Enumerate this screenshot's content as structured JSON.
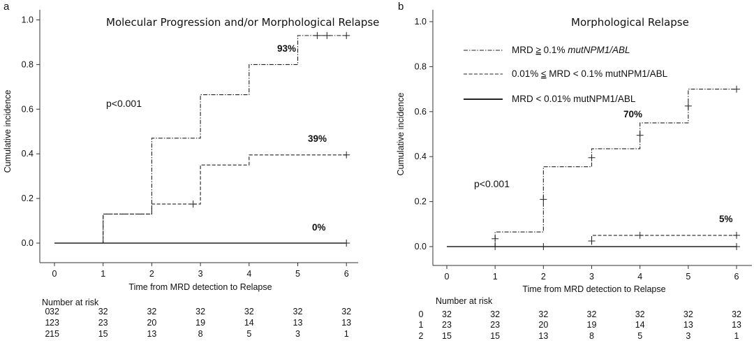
{
  "chart_data": [
    {
      "type": "line",
      "panel": "a",
      "title": "Molecular Progression and/or Morphological Relapse",
      "xlabel": "Time from MRD detection to Relapse",
      "ylabel": "Cumulative incidence",
      "xlim": [
        0,
        6
      ],
      "ylim": [
        0,
        1
      ],
      "x_ticks": [
        "0",
        "1",
        "2",
        "3",
        "4",
        "5",
        "6"
      ],
      "y_ticks": [
        "0.0",
        "0.2",
        "0.4",
        "0.6",
        "0.8",
        "1.0"
      ],
      "pvalue": "p<0.001",
      "series": [
        {
          "style": "dotdash",
          "steps": [
            [
              0,
              0
            ],
            [
              1,
              0.13
            ],
            [
              2,
              0.47
            ],
            [
              3,
              0.665
            ],
            [
              4,
              0.8
            ],
            [
              5,
              0.93
            ],
            [
              6,
              0.93
            ]
          ],
          "censor_x": [
            5.4,
            5.6,
            6
          ],
          "label": "93%"
        },
        {
          "style": "dashed",
          "steps": [
            [
              0,
              0
            ],
            [
              1,
              0.13
            ],
            [
              2,
              0.175
            ],
            [
              3,
              0.35
            ],
            [
              4,
              0.395
            ],
            [
              6,
              0.395
            ]
          ],
          "censor_x": [
            2.85,
            6
          ],
          "label": "39%"
        },
        {
          "style": "solid",
          "steps": [
            [
              0,
              0
            ],
            [
              6,
              0
            ]
          ],
          "censor_x": [
            6
          ],
          "label": "0%"
        }
      ],
      "risk_table": {
        "header": "Number at risk",
        "rows": [
          {
            "group": "0",
            "values": [
              "32",
              "32",
              "32",
              "32",
              "32",
              "32",
              "32"
            ]
          },
          {
            "group": "1",
            "values": [
              "23",
              "23",
              "20",
              "19",
              "14",
              "13",
              "13"
            ]
          },
          {
            "group": "2",
            "values": [
              "15",
              "15",
              "13",
              "8",
              "5",
              "3",
              "1"
            ]
          }
        ]
      }
    },
    {
      "type": "line",
      "panel": "b",
      "title": "Morphological Relapse",
      "xlabel": "Time from MRD detection to Relapse",
      "ylabel": "Cumulative incidence",
      "xlim": [
        0,
        6
      ],
      "ylim": [
        0,
        1
      ],
      "x_ticks": [
        "0",
        "1",
        "2",
        "3",
        "4",
        "5",
        "6"
      ],
      "y_ticks": [
        "0.0",
        "0.2",
        "0.4",
        "0.6",
        "0.8",
        "1.0"
      ],
      "pvalue": "p<0.001",
      "legend": {
        "position": "top-left",
        "entries": [
          {
            "style": "dotdash",
            "text": "MRD ",
            "ge": "≥",
            "text2": " 0.1% ",
            "italic": "mutNPM1/ABL"
          },
          {
            "style": "dashed",
            "text": "0.01% ",
            "ge": "≤",
            "text2": " MRD < 0.1% mutNPM1/ABL",
            "italic": ""
          },
          {
            "style": "solid",
            "text": "MRD < 0.01% mutNPM1/ABL",
            "ge": "",
            "text2": "",
            "italic": ""
          }
        ]
      },
      "series": [
        {
          "style": "dotdash",
          "steps": [
            [
              0,
              0
            ],
            [
              1,
              0.065
            ],
            [
              2,
              0.355
            ],
            [
              3,
              0.435
            ],
            [
              4,
              0.55
            ],
            [
              5,
              0.7
            ],
            [
              6,
              0.7
            ]
          ],
          "censor_x": [
            1,
            2,
            3,
            4,
            5,
            6
          ],
          "censor_y": [
            0.035,
            0.21,
            0.395,
            0.495,
            0.625,
            0.7
          ],
          "label": "70%"
        },
        {
          "style": "dashed",
          "steps": [
            [
              0,
              0
            ],
            [
              3,
              0.05
            ],
            [
              6,
              0.05
            ]
          ],
          "censor_x": [
            3,
            4,
            6
          ],
          "censor_y": [
            0.025,
            0.05,
            0.05
          ],
          "label": "5%"
        },
        {
          "style": "solid",
          "steps": [
            [
              0,
              0
            ],
            [
              6,
              0
            ]
          ],
          "censor_x": [
            1,
            2,
            6
          ],
          "censor_y": [
            0,
            0,
            0
          ],
          "label": ""
        }
      ],
      "risk_table": {
        "header": "Number at risk",
        "rows": [
          {
            "group": "0",
            "values": [
              "32",
              "32",
              "32",
              "32",
              "32",
              "32",
              "32"
            ]
          },
          {
            "group": "1",
            "values": [
              "23",
              "23",
              "20",
              "19",
              "14",
              "13",
              "13"
            ]
          },
          {
            "group": "2",
            "values": [
              "15",
              "15",
              "13",
              "8",
              "5",
              "3",
              "1"
            ]
          }
        ]
      }
    }
  ]
}
